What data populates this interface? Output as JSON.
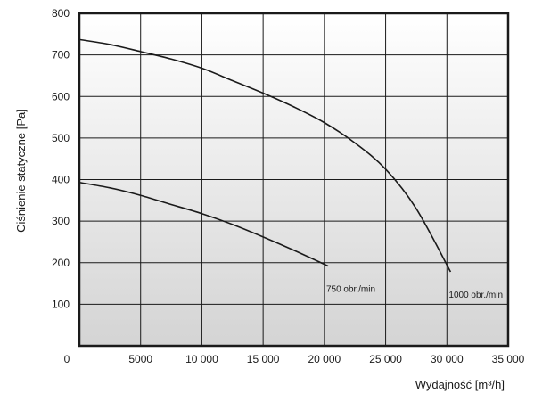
{
  "chart_data": {
    "type": "line",
    "title": "",
    "xlabel": "Wydajność [m³/h]",
    "ylabel": "Ciśnienie statyczne [Pa]",
    "xlim": [
      0,
      35000
    ],
    "ylim": [
      0,
      800
    ],
    "grid": true,
    "x_ticks": [
      {
        "value": 0,
        "label": "0"
      },
      {
        "value": 5000,
        "label": "5000"
      },
      {
        "value": 10000,
        "label": "10 000"
      },
      {
        "value": 15000,
        "label": "15 000"
      },
      {
        "value": 20000,
        "label": "20 000"
      },
      {
        "value": 25000,
        "label": "25 000"
      },
      {
        "value": 30000,
        "label": "30 000"
      },
      {
        "value": 35000,
        "label": "35 000"
      }
    ],
    "y_ticks": [
      {
        "value": 100,
        "label": "100"
      },
      {
        "value": 200,
        "label": "200"
      },
      {
        "value": 300,
        "label": "300"
      },
      {
        "value": 400,
        "label": "400"
      },
      {
        "value": 500,
        "label": "500"
      },
      {
        "value": 600,
        "label": "600"
      },
      {
        "value": 700,
        "label": "700"
      },
      {
        "value": 800,
        "label": "800"
      }
    ],
    "series": [
      {
        "name": "750 obr./min",
        "x": [
          0,
          2500,
          5000,
          7500,
          10000,
          12500,
          15000,
          17500,
          20300
        ],
        "y": [
          393,
          380,
          362,
          340,
          318,
          292,
          262,
          230,
          192
        ]
      },
      {
        "name": "1000 obr./min",
        "x": [
          0,
          2500,
          5000,
          7500,
          10000,
          12500,
          15000,
          17500,
          20000,
          22500,
          25000,
          27500,
          30300
        ],
        "y": [
          737,
          725,
          708,
          690,
          668,
          638,
          608,
          575,
          537,
          488,
          425,
          330,
          178
        ]
      }
    ]
  }
}
